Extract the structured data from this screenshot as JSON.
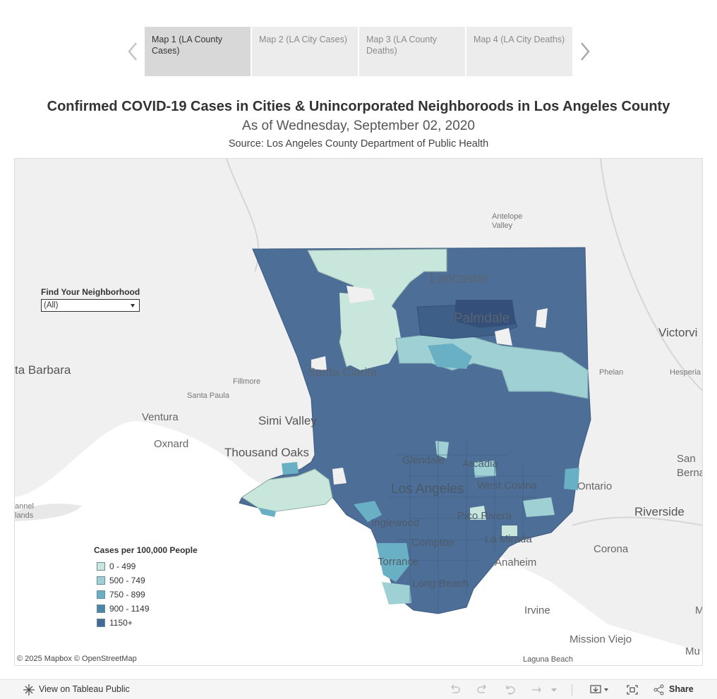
{
  "story": {
    "tabs": [
      {
        "label": "Map 1 (LA County Cases)",
        "active": true
      },
      {
        "label": "Map 2 (LA City Cases)",
        "active": false
      },
      {
        "label": "Map 3 (LA County Deaths)",
        "active": false
      },
      {
        "label": "Map 4 (LA City Deaths)",
        "active": false
      }
    ],
    "prev_icon": "chevron-left-icon",
    "next_icon": "chevron-right-icon"
  },
  "titles": {
    "main": "Confirmed COVID-19 Cases in Cities & Unincorporated Neighboroods in Los Angeles County",
    "date": "As of Wednesday, September 02, 2020",
    "source": "Source: Los Angeles County Department of Public Health"
  },
  "filter": {
    "label": "Find Your Neighborhood",
    "value": "(All)"
  },
  "map": {
    "places": {
      "antelope_valley": "Antelope\nValley",
      "lancaster": "Lancaster",
      "palmdale": "Palmdale",
      "victorville": "Victorvi",
      "santa_barbara": "ta Barbara",
      "fillmore": "Fillmore",
      "phelan": "Phelan",
      "hesperia": "Hesperia",
      "santa_clarita": "Santa Clarita",
      "santa_paula": "Santa Paula",
      "ventura": "Ventura",
      "simi_valley": "Simi Valley",
      "oxnard": "Oxnard",
      "thousand_oaks": "Thousand Oaks",
      "san_bernardino": "San\nBernard",
      "glendale": "Glendale",
      "arcadia": "Arcadia",
      "los_angeles": "Los Angeles",
      "west_covina": "West Covina",
      "ontario": "Ontario",
      "riverside": "Riverside",
      "channel_islands": "annel\nlands",
      "pico_rivera": "Pico Rivera",
      "inglewood": "Inglewood",
      "compton": "Compton",
      "la_mirada": "La Mirada",
      "corona": "Corona",
      "torrance": "Torrance",
      "anaheim": "Anaheim",
      "long_beach": "Long Beach",
      "irvine": "Irvine",
      "mission_viejo": "Mission Viejo",
      "laguna_beach": "Laguna Beach",
      "mu": "Mu",
      "m": "M"
    },
    "attribution": "© 2025 Mapbox  © OpenStreetMap"
  },
  "legend": {
    "title": "Cases per 100,000 People",
    "items": [
      {
        "label": "0 - 499",
        "color": "#c9e6dd"
      },
      {
        "label": "500 - 749",
        "color": "#9fd0d4"
      },
      {
        "label": "750 - 899",
        "color": "#6ab0c4"
      },
      {
        "label": "900 - 1149",
        "color": "#4d86a4"
      },
      {
        "label": "1150+",
        "color": "#436a92"
      }
    ]
  },
  "toolbar": {
    "view_label": "View on Tableau Public",
    "share_label": "Share"
  }
}
